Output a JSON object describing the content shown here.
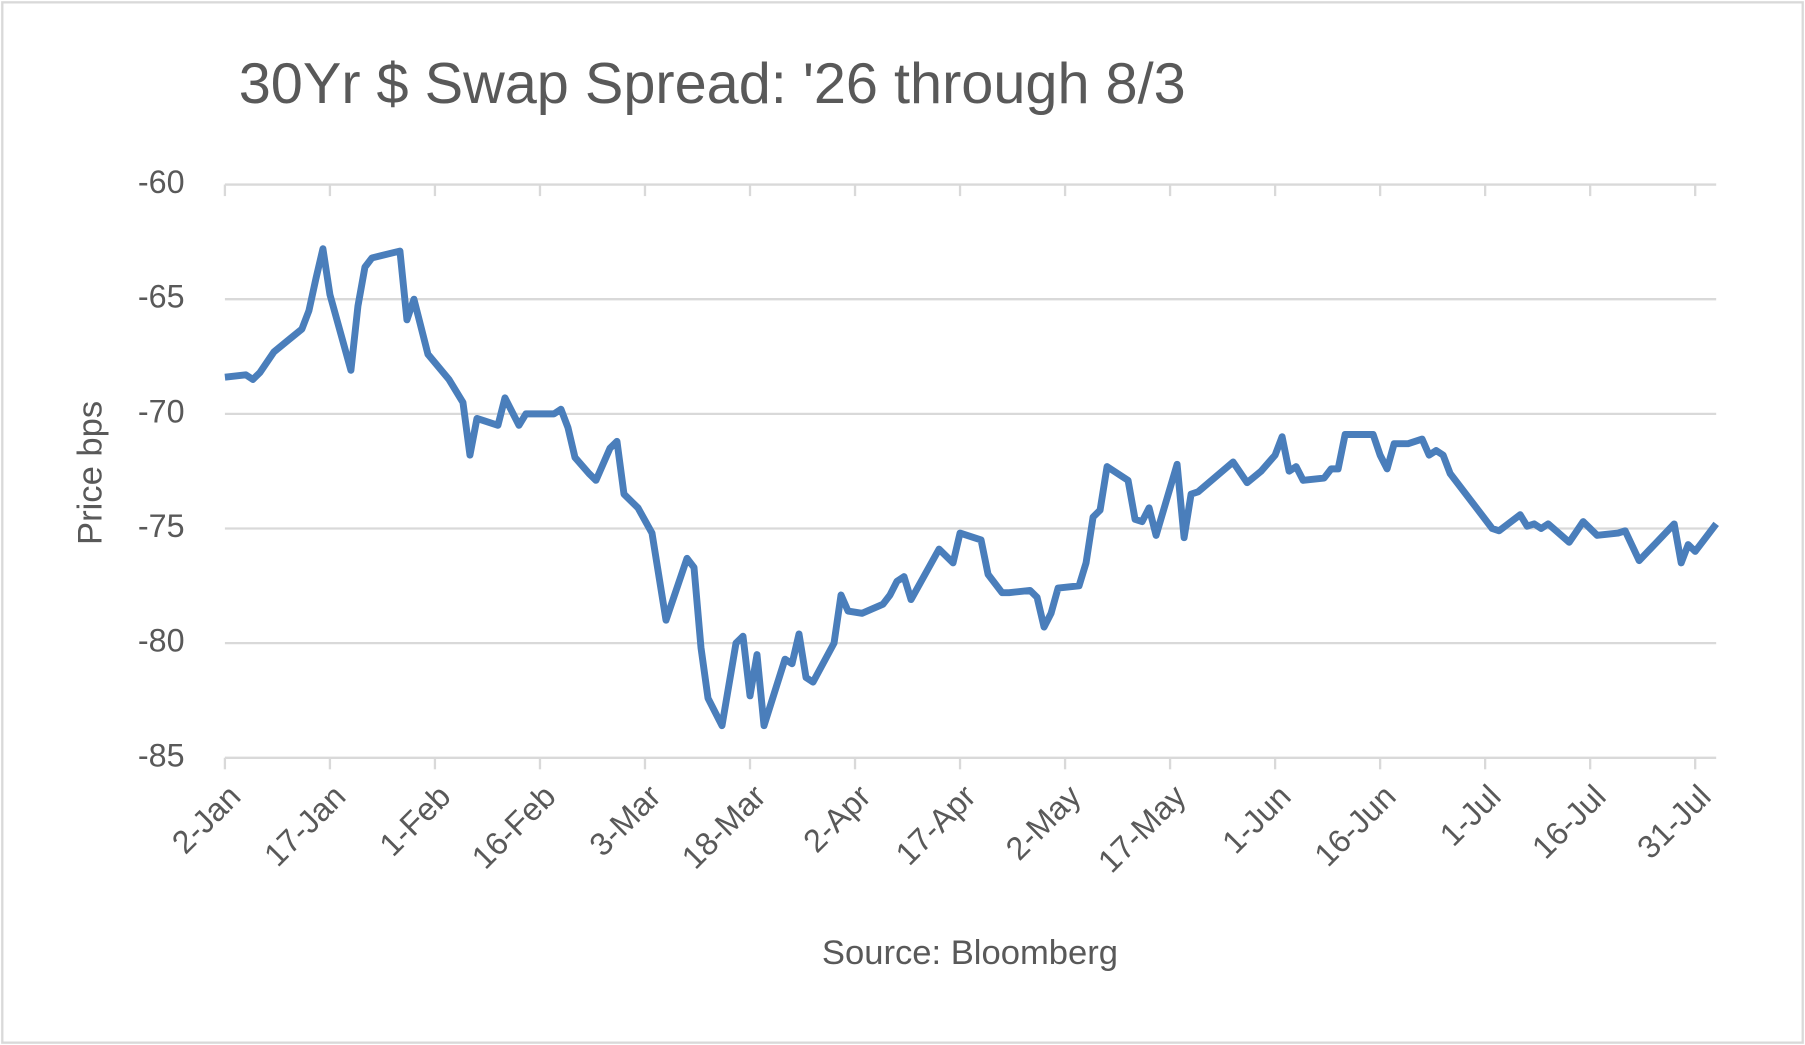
{
  "chart_data": {
    "type": "line",
    "title": "30Yr $ Swap Spread: '26 through 8/3",
    "y_label": "Price bps",
    "source": "Source: Bloomberg",
    "x": [
      "2-Jan",
      "5-Jan",
      "6-Jan",
      "7-Jan",
      "9-Jan",
      "11-Jan",
      "13-Jan",
      "14-Jan",
      "15-Jan",
      "16-Jan",
      "17-Jan",
      "20-Jan",
      "21-Jan",
      "22-Jan",
      "23-Jan",
      "27-Jan",
      "28-Jan",
      "29-Jan",
      "31-Jan",
      "3-Feb",
      "5-Feb",
      "6-Feb",
      "7-Feb",
      "10-Feb",
      "11-Feb",
      "13-Feb",
      "14-Feb",
      "18-Feb",
      "19-Feb",
      "20-Feb",
      "21-Feb",
      "23-Feb",
      "24-Feb",
      "26-Feb",
      "27-Feb",
      "28-Feb",
      "2-Mar",
      "4-Mar",
      "6-Mar",
      "9-Mar",
      "10-Mar",
      "11-Mar",
      "12-Mar",
      "14-Mar",
      "16-Mar",
      "17-Mar",
      "18-Mar",
      "19-Mar",
      "20-Mar",
      "23-Mar",
      "24-Mar",
      "25-Mar",
      "26-Mar",
      "27-Mar",
      "30-Mar",
      "31-Mar",
      "1-Apr",
      "3-Apr",
      "6-Apr",
      "7-Apr",
      "8-Apr",
      "9-Apr",
      "10-Apr",
      "14-Apr",
      "16-Apr",
      "17-Apr",
      "20-Apr",
      "21-Apr",
      "23-Apr",
      "24-Apr",
      "27-Apr",
      "28-Apr",
      "29-Apr",
      "30-Apr",
      "1-May",
      "4-May",
      "5-May",
      "6-May",
      "7-May",
      "8-May",
      "11-May",
      "12-May",
      "13-May",
      "14-May",
      "15-May",
      "18-May",
      "19-May",
      "20-May",
      "21-May",
      "26-May",
      "28-May",
      "30-May",
      "1-Jun",
      "2-Jun",
      "3-Jun",
      "4-Jun",
      "5-Jun",
      "8-Jun",
      "9-Jun",
      "10-Jun",
      "11-Jun",
      "15-Jun",
      "16-Jun",
      "17-Jun",
      "18-Jun",
      "20-Jun",
      "22-Jun",
      "23-Jun",
      "24-Jun",
      "25-Jun",
      "26-Jun",
      "29-Jun",
      "2-Jul",
      "3-Jul",
      "6-Jul",
      "7-Jul",
      "8-Jul",
      "9-Jul",
      "10-Jul",
      "13-Jul",
      "15-Jul",
      "17-Jul",
      "20-Jul",
      "21-Jul",
      "23-Jul",
      "28-Jul",
      "29-Jul",
      "30-Jul",
      "31-Jul",
      "3-Aug"
    ],
    "series": [
      {
        "name": "30Yr $ Swap Spread",
        "color": "#4a7ebb",
        "values": [
          -68.4,
          -68.3,
          -68.5,
          -68.2,
          -67.3,
          -66.8,
          -66.3,
          -65.5,
          -64.1,
          -62.8,
          -64.8,
          -68.1,
          -65.3,
          -63.6,
          -63.2,
          -62.9,
          -65.9,
          -65.0,
          -67.4,
          -68.5,
          -69.5,
          -71.8,
          -70.2,
          -70.5,
          -69.3,
          -70.5,
          -70.0,
          -70.0,
          -69.8,
          -70.6,
          -71.9,
          -72.6,
          -72.9,
          -71.5,
          -71.2,
          -73.5,
          -74.1,
          -75.2,
          -79.0,
          -76.3,
          -76.7,
          -80.2,
          -82.4,
          -83.6,
          -80.0,
          -79.7,
          -82.3,
          -80.5,
          -83.6,
          -80.7,
          -80.9,
          -79.6,
          -81.5,
          -81.7,
          -80.0,
          -77.9,
          -78.6,
          -78.7,
          -78.3,
          -77.9,
          -77.3,
          -77.1,
          -78.1,
          -75.9,
          -76.5,
          -75.2,
          -75.5,
          -77.0,
          -77.8,
          -77.8,
          -77.7,
          -78.0,
          -79.3,
          -78.7,
          -77.6,
          -77.5,
          -76.5,
          -74.5,
          -74.2,
          -72.3,
          -72.9,
          -74.6,
          -74.7,
          -74.1,
          -75.3,
          -72.2,
          -75.4,
          -73.5,
          -73.4,
          -72.1,
          -73.0,
          -72.5,
          -71.8,
          -71.0,
          -72.5,
          -72.3,
          -72.9,
          -72.8,
          -72.4,
          -72.4,
          -70.9,
          -70.9,
          -71.8,
          -72.4,
          -71.3,
          -71.3,
          -71.1,
          -71.8,
          -71.6,
          -71.8,
          -72.6,
          -73.8,
          -75.0,
          -75.1,
          -74.4,
          -74.9,
          -74.8,
          -75.0,
          -74.8,
          -75.6,
          -74.7,
          -75.3,
          -75.2,
          -75.1,
          -76.4,
          -74.8,
          -76.5,
          -75.7,
          -76.0,
          -74.8
        ]
      }
    ],
    "xlim": [
      "2-Jan",
      "3-Aug"
    ],
    "xticks": [
      "2-Jan",
      "17-Jan",
      "1-Feb",
      "16-Feb",
      "3-Mar",
      "18-Mar",
      "2-Apr",
      "17-Apr",
      "2-May",
      "17-May",
      "1-Jun",
      "16-Jun",
      "1-Jul",
      "16-Jul",
      "31-Jul"
    ],
    "ylim": [
      -85,
      -60
    ],
    "yticks": [
      -60,
      -65,
      -70,
      -75,
      -80,
      -85
    ],
    "grid": true
  }
}
